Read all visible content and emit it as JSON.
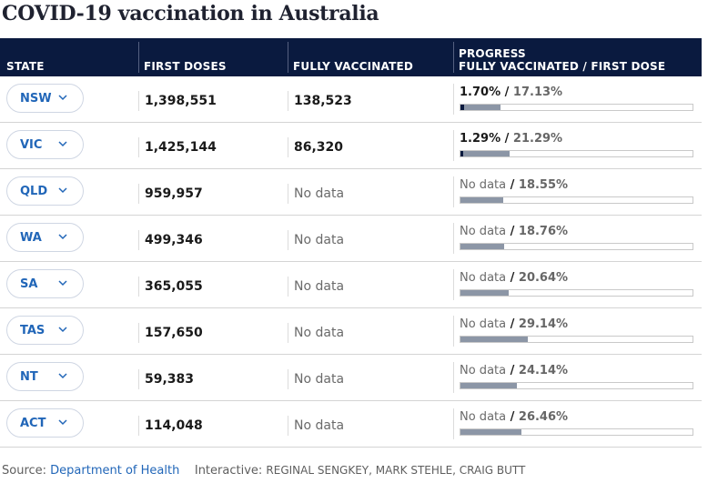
{
  "title": "COVID-19 vaccination in Australia",
  "headers": {
    "state": "STATE",
    "first_doses": "FIRST DOSES",
    "fully_vaccinated": "FULLY VACCINATED",
    "progress_line1": "PROGRESS",
    "progress_line2": "FULLY VACCINATED / FIRST DOSE"
  },
  "rows": [
    {
      "state": "NSW",
      "first_doses": "1,398,551",
      "fully": "138,523",
      "pct_full": "1.70%",
      "pct_first": "17.13%",
      "full_fraction": 0.017,
      "first_fraction": 0.1713
    },
    {
      "state": "VIC",
      "first_doses": "1,425,144",
      "fully": "86,320",
      "pct_full": "1.29%",
      "pct_first": "21.29%",
      "full_fraction": 0.0129,
      "first_fraction": 0.2129
    },
    {
      "state": "QLD",
      "first_doses": "959,957",
      "fully": "No data",
      "pct_full": "No data",
      "pct_first": "18.55%",
      "full_fraction": 0,
      "first_fraction": 0.1855
    },
    {
      "state": "WA",
      "first_doses": "499,346",
      "fully": "No data",
      "pct_full": "No data",
      "pct_first": "18.76%",
      "full_fraction": 0,
      "first_fraction": 0.1876
    },
    {
      "state": "SA",
      "first_doses": "365,055",
      "fully": "No data",
      "pct_full": "No data",
      "pct_first": "20.64%",
      "full_fraction": 0,
      "first_fraction": 0.2064
    },
    {
      "state": "TAS",
      "first_doses": "157,650",
      "fully": "No data",
      "pct_full": "No data",
      "pct_first": "29.14%",
      "full_fraction": 0,
      "first_fraction": 0.2914
    },
    {
      "state": "NT",
      "first_doses": "59,383",
      "fully": "No data",
      "pct_full": "No data",
      "pct_first": "24.14%",
      "full_fraction": 0,
      "first_fraction": 0.2414
    },
    {
      "state": "ACT",
      "first_doses": "114,048",
      "fully": "No data",
      "pct_full": "No data",
      "pct_first": "26.46%",
      "full_fraction": 0,
      "first_fraction": 0.2646
    }
  ],
  "no_data_label": "No data",
  "footer": {
    "source_label": "Source:",
    "source_link": "Department of Health",
    "interactive_label": "Interactive:",
    "credits": "REGINAL SENGKEY, MARK STEHLE, CRAIG BUTT"
  },
  "colors": {
    "header_bg": "#0a1a3f",
    "link": "#2166b8",
    "bar_first": "#8c96a6",
    "bar_full": "#0a1a3f"
  },
  "icons": {
    "dropdown": "chevron-down-icon"
  }
}
